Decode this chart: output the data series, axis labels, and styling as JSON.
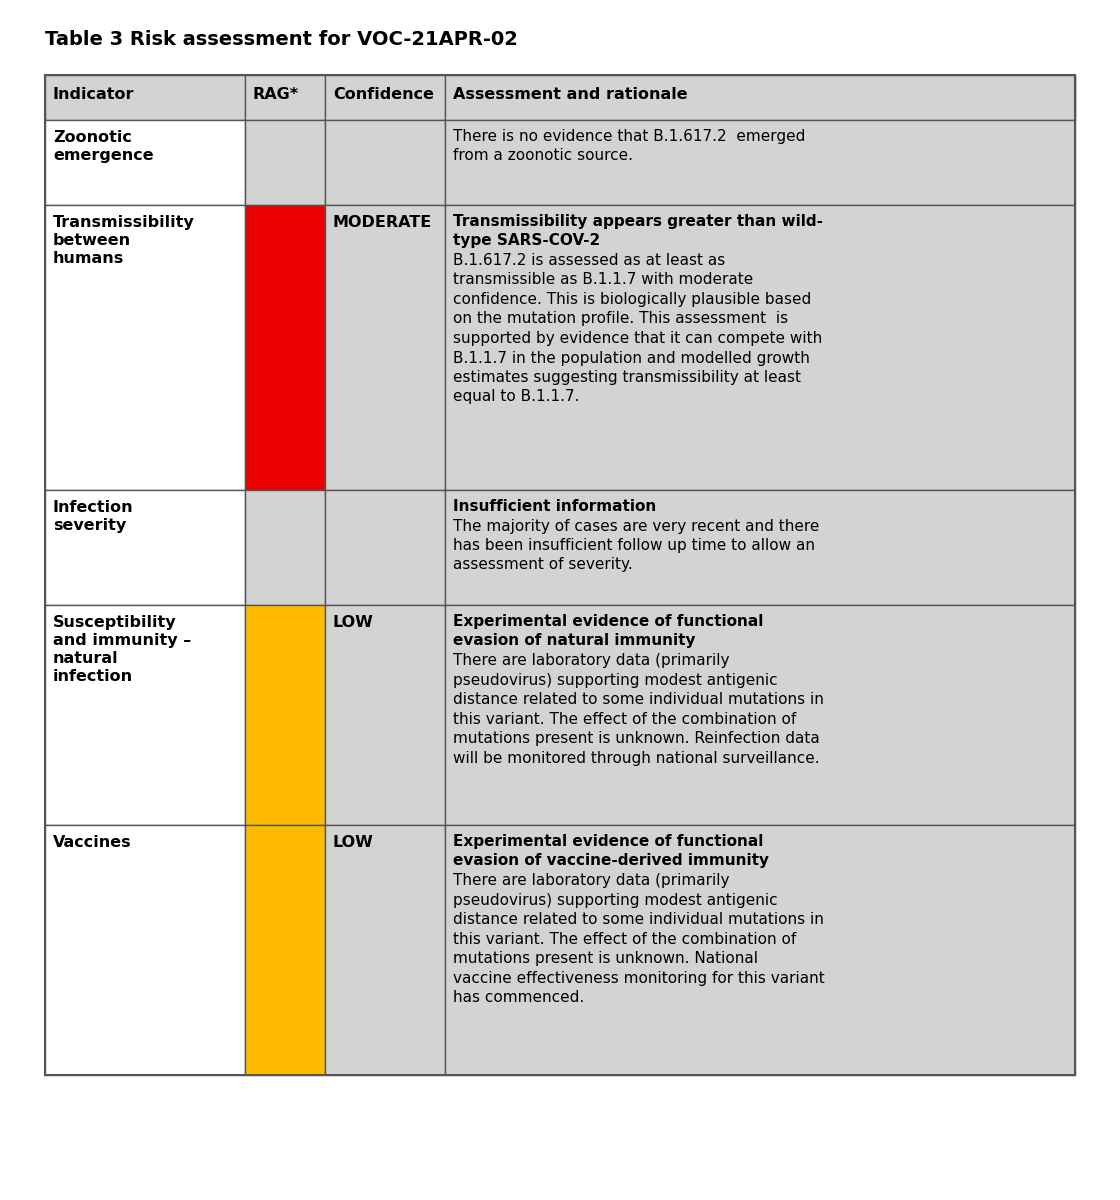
{
  "title": "Table 3 Risk assessment for VOC-21APR-02",
  "title_fontsize": 14,
  "background_color": "#ffffff",
  "table_border_color": "#555555",
  "header_bg": "#d3d3d3",
  "cell_bg_light": "#d3d3d3",
  "cell_bg_white": "#ffffff",
  "color_red": "#ee0000",
  "color_amber": "#ffbb00",
  "headers": [
    "Indicator",
    "RAG*",
    "Confidence",
    "Assessment and rationale"
  ],
  "rows": [
    {
      "indicator": "Zoonotic\nemergence",
      "rag_color": "#d3d3d3",
      "confidence_text": "",
      "assessment_lines": [
        {
          "text": "There is no evidence that B.1.617.2  emerged",
          "bold": false
        },
        {
          "text": "from a zoonotic source.",
          "bold": false
        }
      ]
    },
    {
      "indicator": "Transmissibility\nbetween\nhumans",
      "rag_color": "#ee0000",
      "confidence_text": "MODERATE",
      "assessment_lines": [
        {
          "text": "Transmissibility appears greater than wild-",
          "bold": true
        },
        {
          "text": "type SARS-COV-2",
          "bold": true
        },
        {
          "text": "B.1.617.2 is assessed as at least as",
          "bold": false
        },
        {
          "text": "transmissible as B.1.1.7 with moderate",
          "bold": false
        },
        {
          "text": "confidence. This is biologically plausible based",
          "bold": false
        },
        {
          "text": "on the mutation profile. This assessment  is",
          "bold": false
        },
        {
          "text": "supported by evidence that it can compete with",
          "bold": false
        },
        {
          "text": "B.1.1.7 in the population and modelled growth",
          "bold": false
        },
        {
          "text": "estimates suggesting transmissibility at least",
          "bold": false
        },
        {
          "text": "equal to B.1.1.7.",
          "bold": false
        }
      ]
    },
    {
      "indicator": "Infection\nseverity",
      "rag_color": "#d3d3d3",
      "confidence_text": "",
      "assessment_lines": [
        {
          "text": "Insufficient information",
          "bold": true
        },
        {
          "text": "The majority of cases are very recent and there",
          "bold": false
        },
        {
          "text": "has been insufficient follow up time to allow an",
          "bold": false
        },
        {
          "text": "assessment of severity.",
          "bold": false
        }
      ]
    },
    {
      "indicator": "Susceptibility\nand immunity –\nnatural\ninfection",
      "rag_color": "#ffbb00",
      "confidence_text": "LOW",
      "assessment_lines": [
        {
          "text": "Experimental evidence of functional",
          "bold": true
        },
        {
          "text": "evasion of natural immunity",
          "bold": true
        },
        {
          "text": "There are laboratory data (primarily",
          "bold": false
        },
        {
          "text": "pseudovirus) supporting modest antigenic",
          "bold": false
        },
        {
          "text": "distance related to some individual mutations in",
          "bold": false
        },
        {
          "text": "this variant. The effect of the combination of",
          "bold": false
        },
        {
          "text": "mutations present is unknown. Reinfection data",
          "bold": false
        },
        {
          "text": "will be monitored through national surveillance.",
          "bold": false
        }
      ]
    },
    {
      "indicator": "Vaccines",
      "rag_color": "#ffbb00",
      "confidence_text": "LOW",
      "assessment_lines": [
        {
          "text": "Experimental evidence of functional",
          "bold": true
        },
        {
          "text": "evasion of vaccine-derived immunity",
          "bold": true
        },
        {
          "text": "There are laboratory data (primarily",
          "bold": false
        },
        {
          "text": "pseudovirus) supporting modest antigenic",
          "bold": false
        },
        {
          "text": "distance related to some individual mutations in",
          "bold": false
        },
        {
          "text": "this variant. The effect of the combination of",
          "bold": false
        },
        {
          "text": "mutations present is unknown. National",
          "bold": false
        },
        {
          "text": "vaccine effectiveness monitoring for this variant",
          "bold": false
        },
        {
          "text": "has commenced.",
          "bold": false
        }
      ]
    }
  ]
}
